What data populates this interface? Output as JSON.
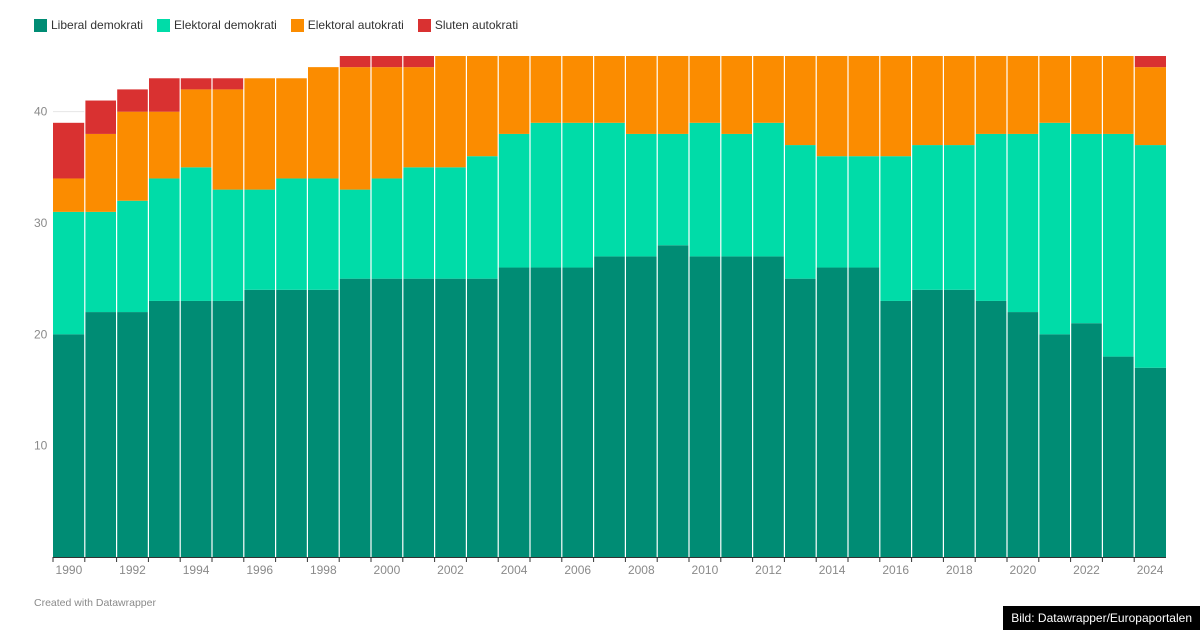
{
  "legend": {
    "items": [
      {
        "label": "Liberal demokrati",
        "color": "#008c74"
      },
      {
        "label": "Elektoral demokrati",
        "color": "#00dca8"
      },
      {
        "label": "Elektoral autokrati",
        "color": "#fb8c00"
      },
      {
        "label": "Sluten autokrati",
        "color": "#d93131"
      }
    ]
  },
  "chart_data": {
    "type": "bar",
    "stacked": true,
    "categories": [
      "1990",
      "1991",
      "1992",
      "1993",
      "1994",
      "1995",
      "1996",
      "1997",
      "1998",
      "1999",
      "2000",
      "2001",
      "2002",
      "2003",
      "2004",
      "2005",
      "2006",
      "2007",
      "2008",
      "2009",
      "2010",
      "2011",
      "2012",
      "2013",
      "2014",
      "2015",
      "2016",
      "2017",
      "2018",
      "2019",
      "2020",
      "2021",
      "2022",
      "2023",
      "2024"
    ],
    "x_tick_labels": [
      "1990",
      "1992",
      "1994",
      "1996",
      "1998",
      "2000",
      "2002",
      "2004",
      "2006",
      "2008",
      "2010",
      "2012",
      "2014",
      "2016",
      "2018",
      "2020",
      "2022",
      "2024"
    ],
    "y_tick_labels": [
      "10",
      "20",
      "30",
      "40"
    ],
    "ylim": [
      0,
      45
    ],
    "series": [
      {
        "name": "Liberal demokrati",
        "color": "#008c74",
        "values": [
          20,
          22,
          22,
          23,
          23,
          23,
          24,
          24,
          24,
          25,
          25,
          25,
          25,
          25,
          26,
          26,
          26,
          27,
          27,
          28,
          27,
          27,
          27,
          25,
          26,
          26,
          23,
          24,
          24,
          23,
          22,
          20,
          21,
          18,
          17
        ]
      },
      {
        "name": "Elektoral demokrati",
        "color": "#00dca8",
        "values": [
          11,
          9,
          10,
          11,
          12,
          10,
          9,
          10,
          10,
          8,
          9,
          10,
          10,
          11,
          12,
          13,
          13,
          12,
          11,
          10,
          12,
          11,
          12,
          12,
          10,
          10,
          13,
          13,
          13,
          15,
          16,
          19,
          17,
          20,
          20
        ]
      },
      {
        "name": "Elektoral autokrati",
        "color": "#fb8c00",
        "values": [
          3,
          7,
          8,
          6,
          7,
          9,
          10,
          9,
          10,
          11,
          10,
          9,
          10,
          9,
          7,
          6,
          6,
          6,
          7,
          7,
          6,
          7,
          6,
          8,
          9,
          9,
          9,
          8,
          8,
          7,
          7,
          6,
          7,
          7,
          7
        ]
      },
      {
        "name": "Sluten autokrati",
        "color": "#d93131",
        "values": [
          5,
          3,
          2,
          3,
          1,
          1,
          0,
          0,
          0,
          1,
          1,
          1,
          0,
          0,
          0,
          0,
          0,
          0,
          0,
          0,
          0,
          0,
          0,
          0,
          0,
          0,
          0,
          0,
          0,
          0,
          0,
          0,
          0,
          0,
          1
        ]
      }
    ],
    "grid": true,
    "legend_position": "top-left"
  },
  "footer": {
    "credit": "Created with Datawrapper",
    "image_credit": "Bild: Datawrapper/Europaportalen"
  }
}
